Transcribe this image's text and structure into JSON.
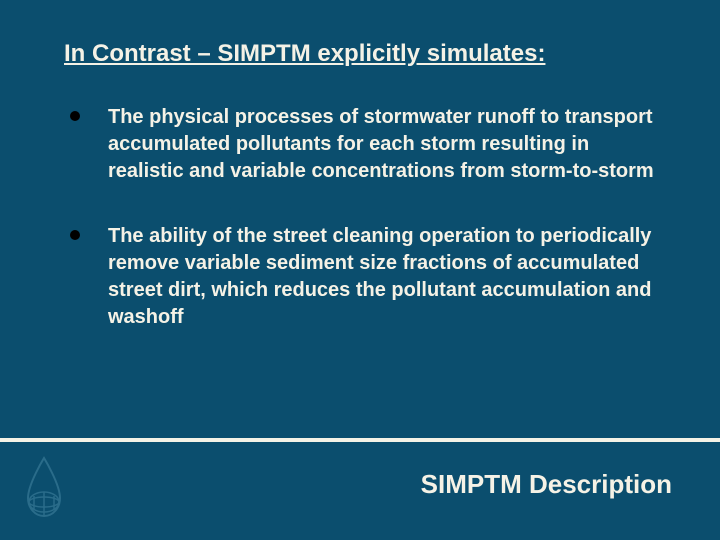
{
  "slide": {
    "background_color": "#0b4e6e",
    "title": "In Contrast – SIMPTM explicitly simulates:",
    "title_color": "#f5f2e6",
    "title_fontsize": 24,
    "bullets": [
      "The physical processes of stormwater runoff to transport accumulated pollutants for each storm resulting in realistic and variable concentrations from storm-to-storm",
      "The ability of the street cleaning operation to periodically remove variable sediment size fractions of accumulated street dirt, which reduces the pollutant accumulation and washoff"
    ],
    "bullet_color": "#f5f2e6",
    "bullet_fontsize": 20,
    "bullet_marker_color": "#000000",
    "footer_title": "SIMPTM Description",
    "footer_title_color": "#f5f2e6",
    "footer_title_fontsize": 26,
    "footer_line_color": "#f5f2e6",
    "logo_stroke": "#2a6c8a",
    "logo_fill": "none"
  }
}
